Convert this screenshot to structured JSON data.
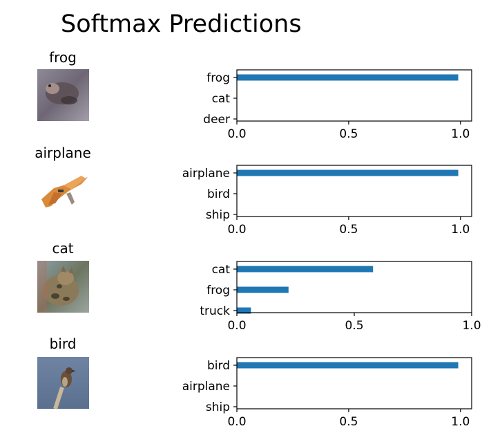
{
  "figure_title": "Softmax Predictions",
  "colors": {
    "bar": "#1f77b4",
    "axis": "#000000",
    "background": "#ffffff"
  },
  "chart_data": [
    {
      "type": "bar",
      "orientation": "horizontal",
      "image_label": "frog",
      "image_description_icon": "frog-thumbnail",
      "categories": [
        "frog",
        "cat",
        "deer"
      ],
      "values": [
        0.99,
        0.0,
        0.0
      ],
      "xlim": [
        0,
        1.05
      ],
      "xticks": [
        0.0,
        0.5,
        1.0
      ],
      "xtick_labels": [
        "0.0",
        "0.5",
        "1.0"
      ]
    },
    {
      "type": "bar",
      "orientation": "horizontal",
      "image_label": "airplane",
      "image_description_icon": "airplane-thumbnail",
      "categories": [
        "airplane",
        "bird",
        "ship"
      ],
      "values": [
        0.99,
        0.0,
        0.0
      ],
      "xlim": [
        0,
        1.05
      ],
      "xticks": [
        0.0,
        0.5,
        1.0
      ],
      "xtick_labels": [
        "0.0",
        "0.5",
        "1.0"
      ]
    },
    {
      "type": "bar",
      "orientation": "horizontal",
      "image_label": "cat",
      "image_description_icon": "cat-thumbnail",
      "categories": [
        "cat",
        "frog",
        "truck"
      ],
      "values": [
        0.58,
        0.22,
        0.06
      ],
      "xlim": [
        0,
        1.0
      ],
      "xticks": [
        0.0,
        0.5,
        1.0
      ],
      "xtick_labels": [
        "0.0",
        "0.5",
        "1.0"
      ]
    },
    {
      "type": "bar",
      "orientation": "horizontal",
      "image_label": "bird",
      "image_description_icon": "bird-thumbnail",
      "categories": [
        "bird",
        "airplane",
        "ship"
      ],
      "values": [
        0.99,
        0.0,
        0.0
      ],
      "xlim": [
        0,
        1.05
      ],
      "xticks": [
        0.0,
        0.5,
        1.0
      ],
      "xtick_labels": [
        "0.0",
        "0.5",
        "1.0"
      ]
    }
  ]
}
